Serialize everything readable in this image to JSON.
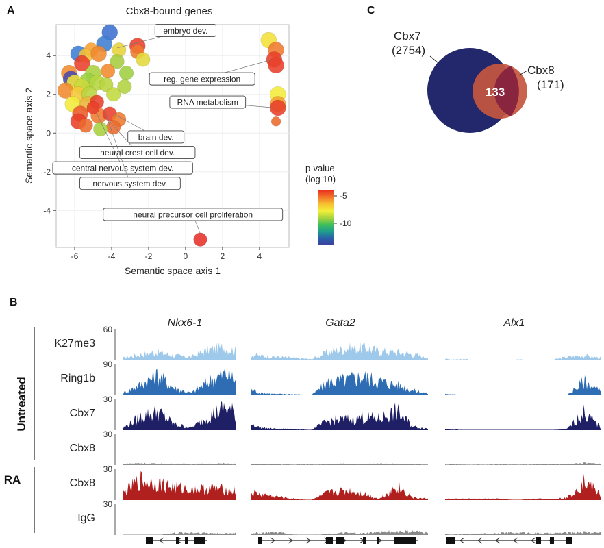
{
  "panels": {
    "a": "A",
    "b": "B",
    "c": "C"
  },
  "chart_data": [
    {
      "type": "scatter",
      "title": "Cbx8-bound genes",
      "xlabel": "Semantic space axis 1",
      "ylabel": "Semantic space axis 2",
      "xlim": [
        -7,
        5.6
      ],
      "ylim": [
        -5.9,
        5.6
      ],
      "xticks": [
        "-6",
        "-4",
        "-2",
        "0",
        "2",
        "4"
      ],
      "xtick_values": [
        -6,
        -4,
        -2,
        0,
        2,
        4
      ],
      "yticks": [
        "4",
        "2",
        "0",
        "-2",
        "-4"
      ],
      "ytick_values": [
        4,
        2,
        0,
        -2,
        -4
      ],
      "grid": true,
      "legend": {
        "title_line1": "p-value",
        "title_line2": "(log 10)",
        "ticks": [
          "-5",
          "-10"
        ],
        "tick_values": [
          -5,
          -10
        ],
        "range": [
          -4,
          -14
        ],
        "colors": [
          "#e8311f",
          "#f2782a",
          "#f7c12f",
          "#f3ef3a",
          "#a8d33d",
          "#3fbf5a",
          "#1e9c8e",
          "#2a5fa8",
          "#3b3f9e"
        ]
      },
      "points": [
        {
          "x": -4.1,
          "y": 5.2,
          "size": 1.0,
          "color": "#3b6fd0"
        },
        {
          "x": -4.4,
          "y": 4.6,
          "size": 1.0,
          "color": "#3e7ed0"
        },
        {
          "x": -5.8,
          "y": 4.1,
          "size": 1.0,
          "color": "#3d7dd6"
        },
        {
          "x": -5.1,
          "y": 4.3,
          "size": 0.9,
          "color": "#f7a030"
        },
        {
          "x": -5.4,
          "y": 4.0,
          "size": 0.9,
          "color": "#f3c23a"
        },
        {
          "x": -3.6,
          "y": 4.3,
          "size": 0.9,
          "color": "#e8d33a"
        },
        {
          "x": -4.7,
          "y": 4.1,
          "size": 1.0,
          "color": "#f08a2e"
        },
        {
          "x": -2.6,
          "y": 4.5,
          "size": 1.0,
          "color": "#e8402a"
        },
        {
          "x": -2.6,
          "y": 4.2,
          "size": 0.9,
          "color": "#ef7a2d"
        },
        {
          "x": -2.3,
          "y": 3.8,
          "size": 0.9,
          "color": "#e2d83a"
        },
        {
          "x": -3.7,
          "y": 3.7,
          "size": 0.9,
          "color": "#a6cc3c"
        },
        {
          "x": -4.2,
          "y": 3.2,
          "size": 0.9,
          "color": "#f08a2e"
        },
        {
          "x": -3.2,
          "y": 3.1,
          "size": 0.9,
          "color": "#9fcf3f"
        },
        {
          "x": -5.6,
          "y": 3.6,
          "size": 1.0,
          "color": "#e8402a"
        },
        {
          "x": -6.3,
          "y": 3.1,
          "size": 1.0,
          "color": "#f08a2e"
        },
        {
          "x": -6.2,
          "y": 2.8,
          "size": 1.0,
          "color": "#4a4ab0"
        },
        {
          "x": -5.0,
          "y": 3.1,
          "size": 1.0,
          "color": "#a8d03e"
        },
        {
          "x": -5.3,
          "y": 2.7,
          "size": 1.0,
          "color": "#98d042"
        },
        {
          "x": -4.8,
          "y": 2.6,
          "size": 1.0,
          "color": "#b4d640"
        },
        {
          "x": -6.0,
          "y": 2.6,
          "size": 1.0,
          "color": "#efe43a"
        },
        {
          "x": -5.6,
          "y": 2.4,
          "size": 1.0,
          "color": "#c8da3a"
        },
        {
          "x": -4.3,
          "y": 2.5,
          "size": 0.9,
          "color": "#b8d43e"
        },
        {
          "x": -3.3,
          "y": 2.4,
          "size": 0.9,
          "color": "#b0d23e"
        },
        {
          "x": -6.5,
          "y": 2.2,
          "size": 1.0,
          "color": "#f08a2e"
        },
        {
          "x": -5.8,
          "y": 2.0,
          "size": 1.0,
          "color": "#f5c83a"
        },
        {
          "x": -5.2,
          "y": 2.0,
          "size": 1.0,
          "color": "#b8d43e"
        },
        {
          "x": -3.9,
          "y": 2.0,
          "size": 0.9,
          "color": "#c2d83e"
        },
        {
          "x": -6.1,
          "y": 1.5,
          "size": 1.0,
          "color": "#f3ea3a"
        },
        {
          "x": -5.3,
          "y": 1.5,
          "size": 1.0,
          "color": "#e9b53a"
        },
        {
          "x": -4.8,
          "y": 1.6,
          "size": 0.9,
          "color": "#e8402a"
        },
        {
          "x": -5.7,
          "y": 1.0,
          "size": 1.0,
          "color": "#ec5a2a"
        },
        {
          "x": -5.8,
          "y": 0.6,
          "size": 1.0,
          "color": "#e8402a"
        },
        {
          "x": -5.4,
          "y": 0.4,
          "size": 0.9,
          "color": "#ec6a2c"
        },
        {
          "x": -4.7,
          "y": 0.9,
          "size": 1.0,
          "color": "#ef7a2d"
        },
        {
          "x": -4.1,
          "y": 1.0,
          "size": 0.9,
          "color": "#e8402a"
        },
        {
          "x": -3.6,
          "y": 0.7,
          "size": 0.9,
          "color": "#ef7a2d"
        },
        {
          "x": -3.9,
          "y": 0.3,
          "size": 0.9,
          "color": "#ec6a2c"
        },
        {
          "x": -4.6,
          "y": 0.2,
          "size": 0.9,
          "color": "#a8d03e"
        },
        {
          "x": -5.0,
          "y": 1.3,
          "size": 0.8,
          "color": "#e8402a"
        },
        {
          "x": 4.5,
          "y": 4.8,
          "size": 1.0,
          "color": "#f3e03a"
        },
        {
          "x": 4.9,
          "y": 4.3,
          "size": 1.0,
          "color": "#ef7a2d"
        },
        {
          "x": 4.8,
          "y": 3.8,
          "size": 1.0,
          "color": "#e8402a"
        },
        {
          "x": 4.9,
          "y": 3.5,
          "size": 1.0,
          "color": "#e8402a"
        },
        {
          "x": 5.0,
          "y": 2.0,
          "size": 1.0,
          "color": "#f3ec3a"
        },
        {
          "x": 5.0,
          "y": 1.5,
          "size": 1.0,
          "color": "#f2a030"
        },
        {
          "x": 5.0,
          "y": 1.3,
          "size": 1.0,
          "color": "#e8402a"
        },
        {
          "x": 4.9,
          "y": 0.6,
          "size": 0.6,
          "color": "#ec6a2c"
        },
        {
          "x": 0.8,
          "y": -5.5,
          "size": 0.85,
          "color": "#e8312a"
        }
      ],
      "annotations": [
        {
          "label": "embryo dev.",
          "tx": 0,
          "ty": 5.3,
          "px": -3.7,
          "py": 4.4
        },
        {
          "label": "reg. gene expression",
          "tx": 0.9,
          "ty": 2.8,
          "px": 4.7,
          "py": 3.8
        },
        {
          "label": "RNA metabolism",
          "tx": 1.2,
          "ty": 1.6,
          "px": 4.9,
          "py": 1.3
        },
        {
          "label": "brain dev.",
          "tx": -1.6,
          "ty": -0.2,
          "px": -3.9,
          "py": 1.0
        },
        {
          "label": "neural crest cell dev.",
          "tx": -2.6,
          "ty": -1.0,
          "px": -4.2,
          "py": 0.7
        },
        {
          "label": "central nervous system dev.",
          "tx": -3.4,
          "ty": -1.8,
          "px": -4.8,
          "py": 1.0
        },
        {
          "label": "nervous system dev.",
          "tx": -3.0,
          "ty": -2.6,
          "px": -4.4,
          "py": 1.2
        },
        {
          "label": "neural precursor cell proliferation",
          "tx": 0.4,
          "ty": -4.2,
          "px": 0.8,
          "py": -5.2
        }
      ]
    },
    {
      "type": "area",
      "genes": [
        "Nkx6-1",
        "Gata2",
        "Alx1"
      ],
      "group_labels": [
        "Untreated",
        "RA"
      ],
      "tracks": [
        {
          "label": "K27me3",
          "scale": "60",
          "color": "#9ec9ea",
          "profile": [
            0.1,
            0.25,
            0.35,
            0.2,
            0.15,
            0.45,
            0.55,
            0.3,
            0.2,
            0.15,
            0.1,
            0.05,
            0.35,
            0.5,
            0.55,
            0.4,
            0.35,
            0.25,
            0.1,
            0.05,
            0.05,
            0.0,
            0.0,
            0.05,
            0.0,
            0.0,
            0.15,
            0.2,
            0.1
          ]
        },
        {
          "label": "Ring1b",
          "scale": "90",
          "color": "#2e6db4",
          "profile": [
            0.1,
            0.45,
            0.85,
            0.3,
            0.1,
            0.6,
            0.95,
            0.4,
            0.1,
            0.05,
            0.05,
            0.0,
            0.55,
            0.65,
            0.8,
            0.6,
            0.45,
            0.2,
            0.05,
            0.05,
            0.0,
            0.0,
            0.0,
            0.0,
            0.0,
            0.0,
            0.0,
            0.6,
            0.15
          ]
        },
        {
          "label": "Cbx7",
          "scale": "30",
          "color": "#1f1f66",
          "profile": [
            0.1,
            0.55,
            0.8,
            0.25,
            0.1,
            0.6,
            0.95,
            0.5,
            0.1,
            0.05,
            0.05,
            0.0,
            0.4,
            0.45,
            0.55,
            0.5,
            0.8,
            0.15,
            0.05,
            0.05,
            0.0,
            0.0,
            0.0,
            0.0,
            0.0,
            0.0,
            0.05,
            0.75,
            0.1
          ]
        },
        {
          "label": "Cbx8",
          "scale": "30",
          "color": "#8a8a8a",
          "profile": [
            0.05,
            0.08,
            0.05,
            0.05,
            0.04,
            0.05,
            0.06,
            0.05,
            0.04,
            0.03,
            0.02,
            0.03,
            0.04,
            0.05,
            0.04,
            0.06,
            0.05,
            0.03,
            0.02,
            0.03,
            0.02,
            0.02,
            0.03,
            0.02,
            0.02,
            0.03,
            0.04,
            0.08,
            0.05
          ]
        },
        {
          "label": "Cbx8",
          "scale": "30",
          "color": "#b0201e",
          "profile": [
            0.3,
            0.85,
            0.7,
            0.55,
            0.45,
            0.5,
            0.45,
            0.35,
            0.25,
            0.15,
            0.05,
            0.0,
            0.3,
            0.4,
            0.3,
            0.05,
            0.6,
            0.1,
            0.05,
            0.05,
            0.05,
            0.05,
            0.05,
            0.0,
            0.05,
            0.05,
            0.1,
            0.8,
            0.2
          ]
        },
        {
          "label": "IgG",
          "scale": "30",
          "color": "#8a8a8a",
          "profile": [
            0.0,
            0.0,
            0.0,
            0.08,
            0.1,
            0.08,
            0.06,
            0.1,
            0.08,
            0.12,
            0.02,
            0.0,
            0.05,
            0.08,
            0.06,
            0.12,
            0.15,
            0.14,
            0.1,
            0.02,
            0.03,
            0.05,
            0.08,
            0.1,
            0.08,
            0.06,
            0.1,
            0.12,
            0.1
          ]
        }
      ]
    }
  ],
  "venn": {
    "set_a_name": "Cbx7",
    "set_a_count": "(2754)",
    "set_b_name": "Cbx8",
    "set_b_count": "(171)",
    "overlap": "133",
    "colors": {
      "a": "#23276b",
      "b": "#c5563f",
      "overlap": "#8a2540"
    }
  }
}
